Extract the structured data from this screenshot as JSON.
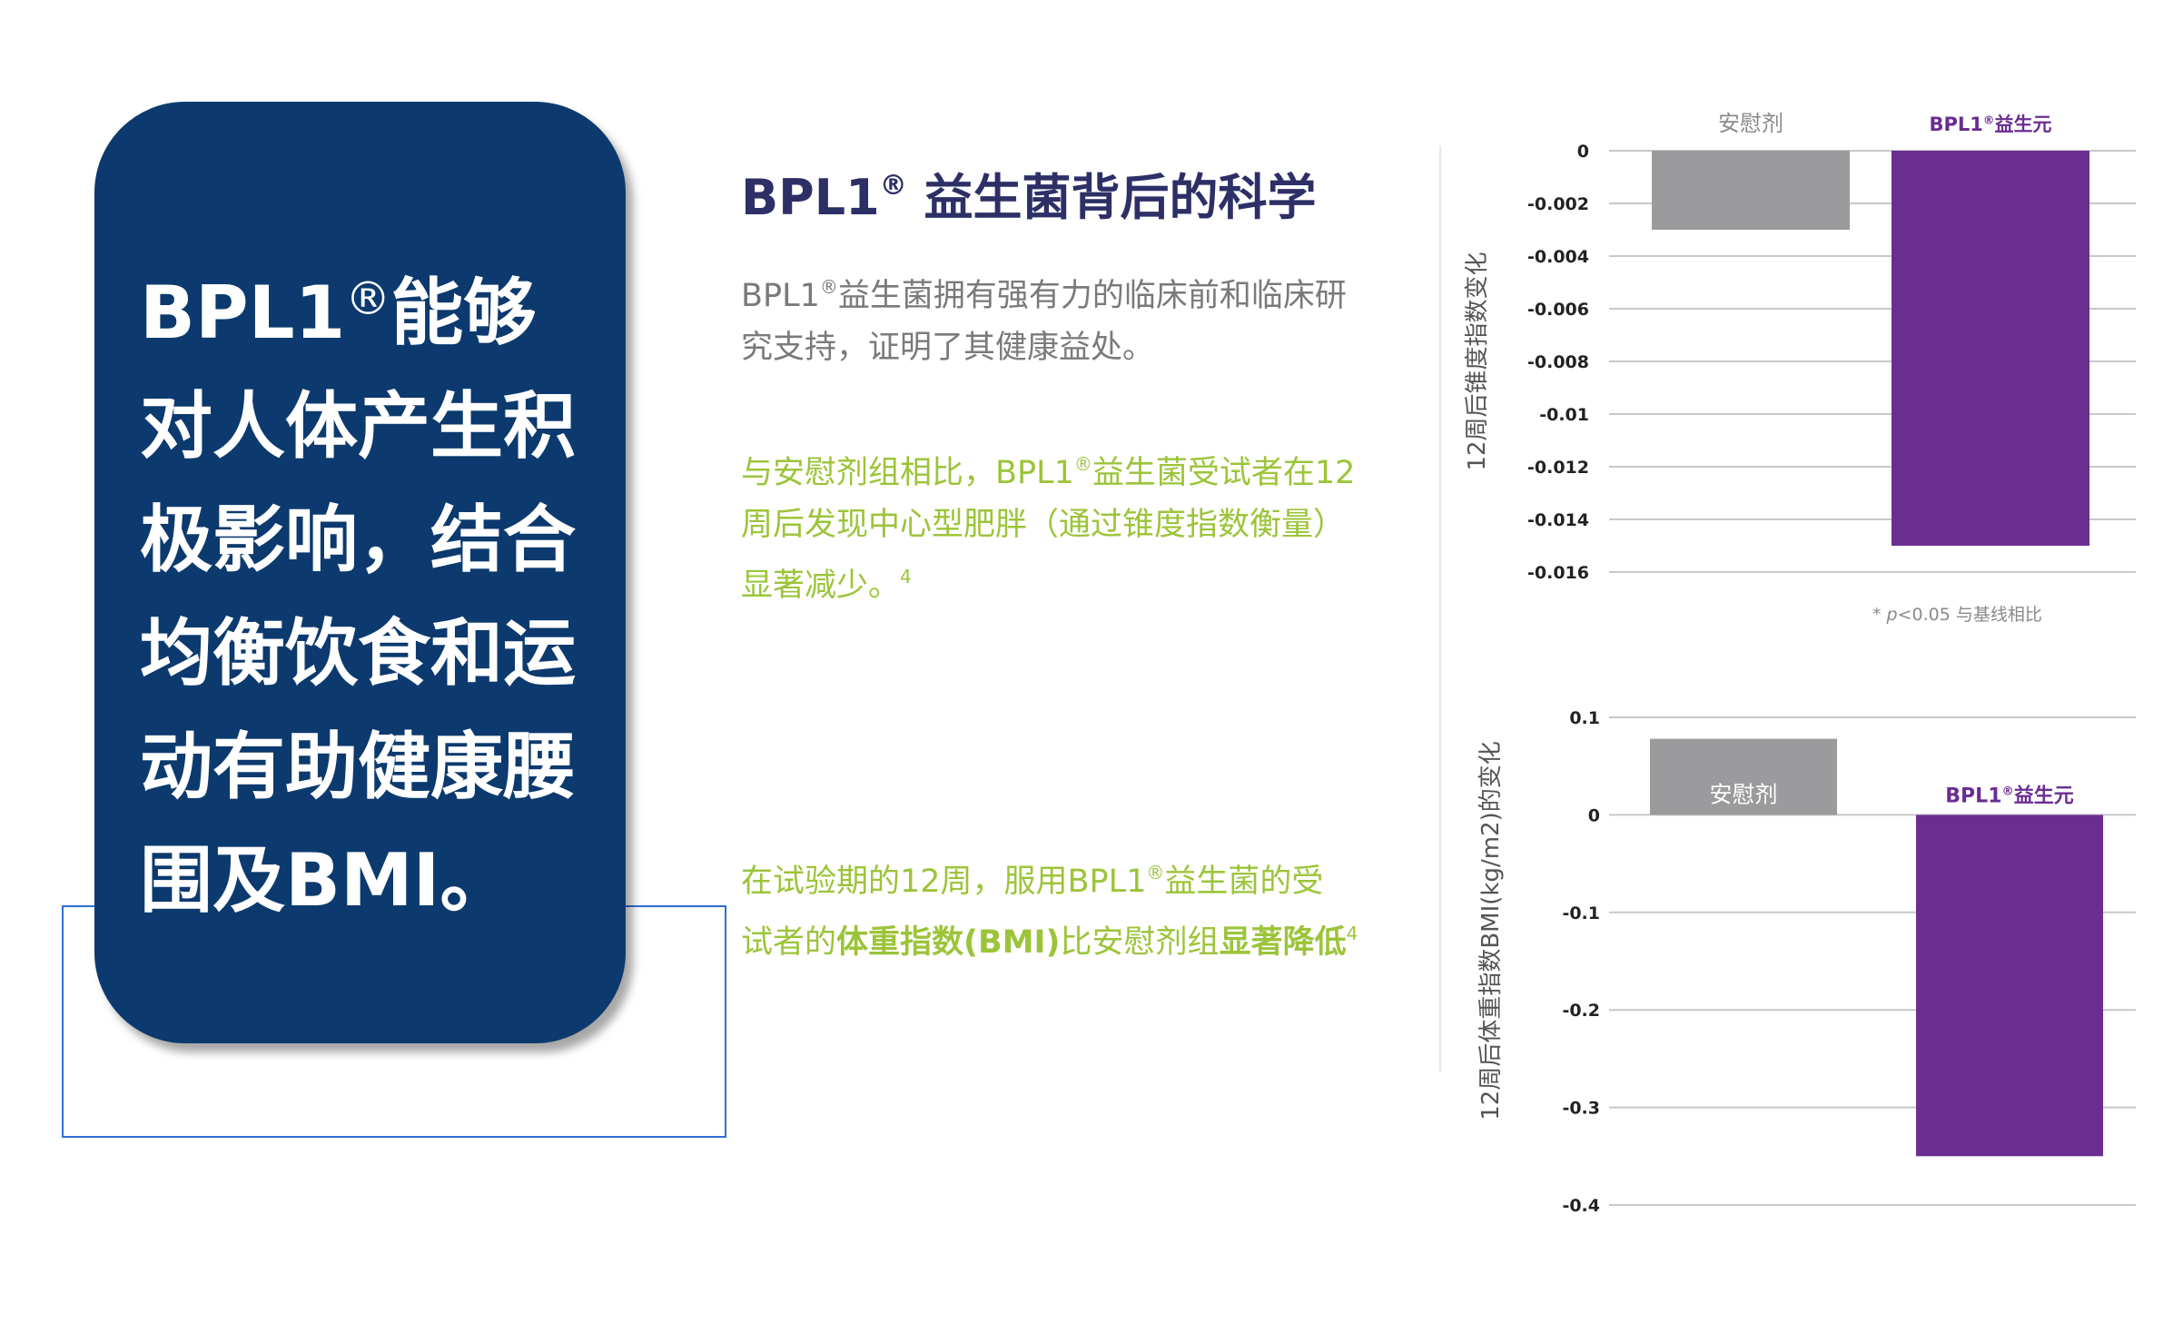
{
  "left_card": {
    "lines": [
      {
        "main": "BPL1",
        "sup": "®",
        "rest": "能够"
      },
      {
        "main": "对人体产生积"
      },
      {
        "main": "极影响，结合"
      },
      {
        "main": "均衡饮食和运"
      },
      {
        "main": "动有助健康腰"
      },
      {
        "main": "围及BMI。"
      }
    ]
  },
  "science": {
    "title_main": "BPL1",
    "title_sup": "®",
    "title_rest": " 益生菌背后的科学",
    "desc_line1_main": "BPL1",
    "desc_line1_sup": "®",
    "desc_line1_rest": "益生菌拥有强有力的临床前和临床研",
    "desc_line2": "究支持，证明了其健康益处。"
  },
  "finding1": {
    "line1_pre": "与安慰剂组相比，BPL1",
    "line1_sup": "®",
    "line1_post": "益生菌受试者在12",
    "line2": "周后发现中心型肥胖（通过锥度指数衡量）",
    "line3": "显著减少。",
    "ref": "4"
  },
  "finding2": {
    "line1_pre": "在试验期的12周，服用BPL1",
    "line1_sup": "®",
    "line1_post": "益生菌的受",
    "line2_pre": "试者的",
    "line2_bold1": "体重指数(BMI)",
    "line2_mid": "比安慰剂组",
    "line2_bold2": "显著降低",
    "ref": "4"
  },
  "colors": {
    "navy_card": "#0c3a6e",
    "title": "#2d2f66",
    "green_text": "#9cc43a",
    "placebo_bar": "#9b9b9e",
    "probiotic_bar": "#6a2d91",
    "probiotic_label": "#6a2d91",
    "placebo_label": "#8a8a8a"
  },
  "chart_data": [
    {
      "type": "bar",
      "categories": [
        "安慰剂",
        "BPL1®益生元"
      ],
      "values": [
        -0.003,
        -0.015
      ],
      "ylabel": "12周后锥度指数变化",
      "ylim": [
        -0.016,
        0
      ],
      "yticks": [
        "0",
        "-0.002",
        "-0.004",
        "-0.006",
        "-0.008",
        "-0.01",
        "-0.012",
        "-0.014",
        "-0.016"
      ],
      "category_label_parts": [
        {
          "main": "安慰剂",
          "sup": ""
        },
        {
          "main": "BPL1",
          "sup": "®",
          "rest": "益生元"
        }
      ],
      "footnote_star": "* ",
      "footnote_p": "p",
      "footnote_rest": "<0.05 与基线相比",
      "grid": true
    },
    {
      "type": "bar",
      "categories": [
        "安慰剂",
        "BPL1®益生元"
      ],
      "values": [
        0.078,
        -0.35
      ],
      "ylabel": "12周后体重指数BMI(kg/m2)的变化",
      "ylim": [
        -0.4,
        0.1
      ],
      "yticks": [
        "0.1",
        "0",
        "-0.1",
        "-0.2",
        "-0.3",
        "-0.4"
      ],
      "category_label_parts": [
        {
          "main": "安慰剂",
          "sup": ""
        },
        {
          "main": "BPL1",
          "sup": "®",
          "rest": "益生元"
        }
      ],
      "grid": true
    }
  ]
}
